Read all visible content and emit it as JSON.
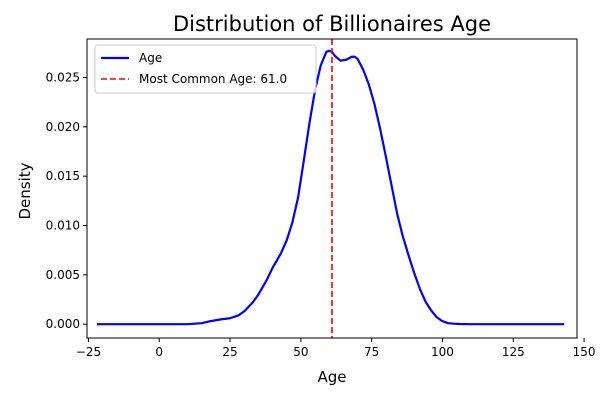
{
  "chart_data": {
    "type": "line",
    "title": "Distribution of Billionaires Age",
    "xlabel": "Age",
    "ylabel": "Density",
    "xlim": [
      -25.5,
      147.5
    ],
    "ylim": [
      -0.0014,
      0.0289
    ],
    "x_ticks": [
      -25,
      0,
      25,
      50,
      75,
      100,
      125,
      150
    ],
    "x_tick_labels": [
      "−25",
      "0",
      "25",
      "50",
      "75",
      "100",
      "125",
      "150"
    ],
    "y_ticks": [
      0.0,
      0.005,
      0.01,
      0.015,
      0.02,
      0.025
    ],
    "y_tick_labels": [
      "0.000",
      "0.005",
      "0.010",
      "0.015",
      "0.020",
      "0.025"
    ],
    "grid": false,
    "legend_position": "top-left",
    "series": [
      {
        "name": "Age",
        "color": "#0000ff",
        "line_style": "solid",
        "x": [
          -22,
          -10,
          0,
          10,
          15,
          18,
          20,
          22,
          25,
          28,
          30,
          33,
          35,
          38,
          40,
          43,
          45,
          47,
          49,
          51,
          53,
          55,
          57,
          59,
          60,
          61,
          62,
          64,
          66,
          68,
          69,
          70,
          72,
          74,
          76,
          78,
          80,
          82,
          84,
          86,
          88,
          90,
          92,
          94,
          96,
          98,
          100,
          102,
          104,
          106,
          110,
          120,
          130,
          143
        ],
        "y": [
          0.0,
          0.0,
          0.0,
          0.0,
          0.0001,
          0.0003,
          0.0004,
          0.0005,
          0.0006,
          0.0009,
          0.0013,
          0.0022,
          0.003,
          0.0045,
          0.0057,
          0.0072,
          0.0085,
          0.0103,
          0.0128,
          0.0165,
          0.0203,
          0.0237,
          0.0262,
          0.0276,
          0.0277,
          0.0276,
          0.0272,
          0.0267,
          0.0268,
          0.0271,
          0.0271,
          0.0269,
          0.0258,
          0.0243,
          0.0223,
          0.0198,
          0.017,
          0.0141,
          0.0112,
          0.0089,
          0.007,
          0.0052,
          0.0036,
          0.0023,
          0.0014,
          0.0007,
          0.0003,
          0.0001,
          5e-05,
          2e-05,
          0.0,
          0.0,
          0.0,
          0.0
        ]
      },
      {
        "name": "Most Common Age: 61.0",
        "color": "#ff0000",
        "line_style": "dashed",
        "kind": "vertical_line",
        "x_value": 61.0
      }
    ]
  }
}
